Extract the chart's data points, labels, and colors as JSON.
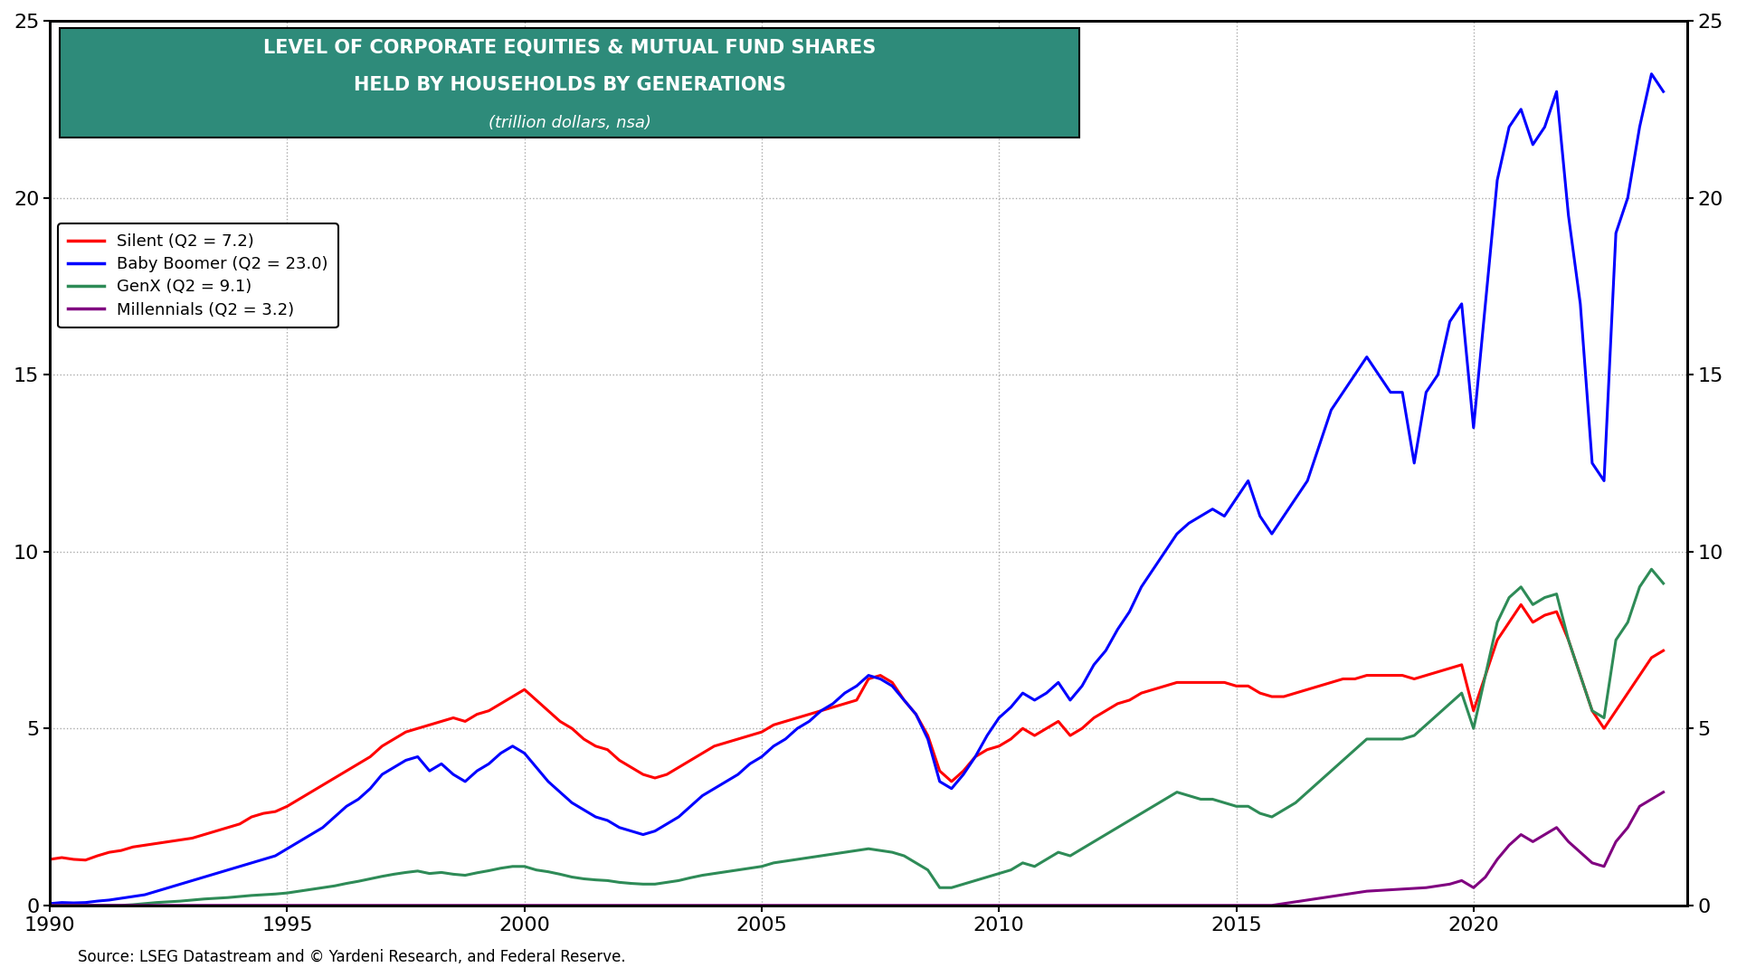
{
  "title_line1": "LEVEL OF CORPORATE EQUITIES & MUTUAL FUND SHARES",
  "title_line2": "HELD BY HOUSEHOLDS BY GENERATIONS",
  "title_line3": "(trillion dollars, nsa)",
  "title_bg_color": "#2e8b7a",
  "source_text": "Source: LSEG Datastream and © Yardeni Research, and Federal Reserve.",
  "legend_entries": [
    "Silent (Q2 = 7.2)",
    "Baby Boomer (Q2 = 23.0)",
    "GenX (Q2 = 9.1)",
    "Millennials (Q2 = 3.2)"
  ],
  "line_colors": [
    "#ff0000",
    "#0000ff",
    "#2e8b57",
    "#800080"
  ],
  "ylim": [
    0,
    25
  ],
  "yticks": [
    0,
    5,
    10,
    15,
    20,
    25
  ],
  "xlim_start": 1990,
  "xlim_end": 2024.5,
  "background_color": "#ffffff",
  "grid_color": "#aaaaaa",
  "years": [
    1990.0,
    1990.25,
    1990.5,
    1990.75,
    1991.0,
    1991.25,
    1991.5,
    1991.75,
    1992.0,
    1992.25,
    1992.5,
    1992.75,
    1993.0,
    1993.25,
    1993.5,
    1993.75,
    1994.0,
    1994.25,
    1994.5,
    1994.75,
    1995.0,
    1995.25,
    1995.5,
    1995.75,
    1996.0,
    1996.25,
    1996.5,
    1996.75,
    1997.0,
    1997.25,
    1997.5,
    1997.75,
    1998.0,
    1998.25,
    1998.5,
    1998.75,
    1999.0,
    1999.25,
    1999.5,
    1999.75,
    2000.0,
    2000.25,
    2000.5,
    2000.75,
    2001.0,
    2001.25,
    2001.5,
    2001.75,
    2002.0,
    2002.25,
    2002.5,
    2002.75,
    2003.0,
    2003.25,
    2003.5,
    2003.75,
    2004.0,
    2004.25,
    2004.5,
    2004.75,
    2005.0,
    2005.25,
    2005.5,
    2005.75,
    2006.0,
    2006.25,
    2006.5,
    2006.75,
    2007.0,
    2007.25,
    2007.5,
    2007.75,
    2008.0,
    2008.25,
    2008.5,
    2008.75,
    2009.0,
    2009.25,
    2009.5,
    2009.75,
    2010.0,
    2010.25,
    2010.5,
    2010.75,
    2011.0,
    2011.25,
    2011.5,
    2011.75,
    2012.0,
    2012.25,
    2012.5,
    2012.75,
    2013.0,
    2013.25,
    2013.5,
    2013.75,
    2014.0,
    2014.25,
    2014.5,
    2014.75,
    2015.0,
    2015.25,
    2015.5,
    2015.75,
    2016.0,
    2016.25,
    2016.5,
    2016.75,
    2017.0,
    2017.25,
    2017.5,
    2017.75,
    2018.0,
    2018.25,
    2018.5,
    2018.75,
    2019.0,
    2019.25,
    2019.5,
    2019.75,
    2020.0,
    2020.25,
    2020.5,
    2020.75,
    2021.0,
    2021.25,
    2021.5,
    2021.75,
    2022.0,
    2022.25,
    2022.5,
    2022.75,
    2023.0,
    2023.25,
    2023.5,
    2023.75,
    2024.0
  ],
  "silent": [
    1.3,
    1.35,
    1.3,
    1.28,
    1.4,
    1.5,
    1.55,
    1.65,
    1.7,
    1.75,
    1.8,
    1.85,
    1.9,
    2.0,
    2.1,
    2.2,
    2.3,
    2.5,
    2.6,
    2.65,
    2.8,
    3.0,
    3.2,
    3.4,
    3.6,
    3.8,
    4.0,
    4.2,
    4.5,
    4.7,
    4.9,
    5.0,
    5.1,
    5.2,
    5.3,
    5.2,
    5.4,
    5.5,
    5.7,
    5.9,
    6.1,
    5.8,
    5.5,
    5.2,
    5.0,
    4.7,
    4.5,
    4.4,
    4.1,
    3.9,
    3.7,
    3.6,
    3.7,
    3.9,
    4.1,
    4.3,
    4.5,
    4.6,
    4.7,
    4.8,
    4.9,
    5.1,
    5.2,
    5.3,
    5.4,
    5.5,
    5.6,
    5.7,
    5.8,
    6.4,
    6.5,
    6.3,
    5.8,
    5.4,
    4.8,
    3.8,
    3.5,
    3.8,
    4.2,
    4.4,
    4.5,
    4.7,
    5.0,
    4.8,
    5.0,
    5.2,
    4.8,
    5.0,
    5.3,
    5.5,
    5.7,
    5.8,
    6.0,
    6.1,
    6.2,
    6.3,
    6.3,
    6.3,
    6.3,
    6.3,
    6.2,
    6.2,
    6.0,
    5.9,
    5.9,
    6.0,
    6.1,
    6.2,
    6.3,
    6.4,
    6.4,
    6.5,
    6.5,
    6.5,
    6.5,
    6.4,
    6.5,
    6.6,
    6.7,
    6.8,
    5.5,
    6.5,
    7.5,
    8.0,
    8.5,
    8.0,
    8.2,
    8.3,
    7.5,
    6.5,
    5.5,
    5.0,
    5.5,
    6.0,
    6.5,
    7.0,
    7.2
  ],
  "baby_boomer": [
    0.05,
    0.08,
    0.07,
    0.08,
    0.12,
    0.15,
    0.2,
    0.25,
    0.3,
    0.4,
    0.5,
    0.6,
    0.7,
    0.8,
    0.9,
    1.0,
    1.1,
    1.2,
    1.3,
    1.4,
    1.6,
    1.8,
    2.0,
    2.2,
    2.5,
    2.8,
    3.0,
    3.3,
    3.7,
    3.9,
    4.1,
    4.2,
    3.8,
    4.0,
    3.7,
    3.5,
    3.8,
    4.0,
    4.3,
    4.5,
    4.3,
    3.9,
    3.5,
    3.2,
    2.9,
    2.7,
    2.5,
    2.4,
    2.2,
    2.1,
    2.0,
    2.1,
    2.3,
    2.5,
    2.8,
    3.1,
    3.3,
    3.5,
    3.7,
    4.0,
    4.2,
    4.5,
    4.7,
    5.0,
    5.2,
    5.5,
    5.7,
    6.0,
    6.2,
    6.5,
    6.4,
    6.2,
    5.8,
    5.4,
    4.7,
    3.5,
    3.3,
    3.7,
    4.2,
    4.8,
    5.3,
    5.6,
    6.0,
    5.8,
    6.0,
    6.3,
    5.8,
    6.2,
    6.8,
    7.2,
    7.8,
    8.3,
    9.0,
    9.5,
    10.0,
    10.5,
    10.8,
    11.0,
    11.2,
    11.0,
    11.5,
    12.0,
    11.0,
    10.5,
    11.0,
    11.5,
    12.0,
    13.0,
    14.0,
    14.5,
    15.0,
    15.5,
    15.0,
    14.5,
    14.5,
    12.5,
    14.5,
    15.0,
    16.5,
    17.0,
    13.5,
    17.0,
    20.5,
    22.0,
    22.5,
    21.5,
    22.0,
    23.0,
    19.5,
    17.0,
    12.5,
    12.0,
    19.0,
    20.0,
    22.0,
    23.5,
    23.0
  ],
  "genx": [
    0.0,
    0.0,
    0.0,
    0.0,
    0.0,
    0.0,
    0.0,
    0.02,
    0.05,
    0.08,
    0.1,
    0.12,
    0.15,
    0.18,
    0.2,
    0.22,
    0.25,
    0.28,
    0.3,
    0.32,
    0.35,
    0.4,
    0.45,
    0.5,
    0.55,
    0.62,
    0.68,
    0.75,
    0.82,
    0.88,
    0.93,
    0.97,
    0.9,
    0.93,
    0.88,
    0.85,
    0.92,
    0.98,
    1.05,
    1.1,
    1.1,
    1.0,
    0.95,
    0.88,
    0.8,
    0.75,
    0.72,
    0.7,
    0.65,
    0.62,
    0.6,
    0.6,
    0.65,
    0.7,
    0.78,
    0.85,
    0.9,
    0.95,
    1.0,
    1.05,
    1.1,
    1.2,
    1.25,
    1.3,
    1.35,
    1.4,
    1.45,
    1.5,
    1.55,
    1.6,
    1.55,
    1.5,
    1.4,
    1.2,
    1.0,
    0.5,
    0.5,
    0.6,
    0.7,
    0.8,
    0.9,
    1.0,
    1.2,
    1.1,
    1.3,
    1.5,
    1.4,
    1.6,
    1.8,
    2.0,
    2.2,
    2.4,
    2.6,
    2.8,
    3.0,
    3.2,
    3.1,
    3.0,
    3.0,
    2.9,
    2.8,
    2.8,
    2.6,
    2.5,
    2.7,
    2.9,
    3.2,
    3.5,
    3.8,
    4.1,
    4.4,
    4.7,
    4.7,
    4.7,
    4.7,
    4.8,
    5.1,
    5.4,
    5.7,
    6.0,
    5.0,
    6.5,
    8.0,
    8.7,
    9.0,
    8.5,
    8.7,
    8.8,
    7.5,
    6.5,
    5.5,
    5.3,
    7.5,
    8.0,
    9.0,
    9.5,
    9.1
  ],
  "millennials": [
    0.0,
    0.0,
    0.0,
    0.0,
    0.0,
    0.0,
    0.0,
    0.0,
    0.0,
    0.0,
    0.0,
    0.0,
    0.0,
    0.0,
    0.0,
    0.0,
    0.0,
    0.0,
    0.0,
    0.0,
    0.0,
    0.0,
    0.0,
    0.0,
    0.0,
    0.0,
    0.0,
    0.0,
    0.0,
    0.0,
    0.0,
    0.0,
    0.0,
    0.0,
    0.0,
    0.0,
    0.0,
    0.0,
    0.0,
    0.0,
    0.0,
    0.0,
    0.0,
    0.0,
    0.0,
    0.0,
    0.0,
    0.0,
    0.0,
    0.0,
    0.0,
    0.0,
    0.0,
    0.0,
    0.0,
    0.0,
    0.0,
    0.0,
    0.0,
    0.0,
    0.0,
    0.0,
    0.0,
    0.0,
    0.0,
    0.0,
    0.0,
    0.0,
    0.0,
    0.0,
    0.0,
    0.0,
    0.0,
    0.0,
    0.0,
    0.0,
    0.0,
    0.0,
    0.0,
    0.0,
    0.0,
    0.0,
    0.0,
    0.0,
    0.0,
    0.0,
    0.0,
    0.0,
    0.0,
    0.0,
    0.0,
    0.0,
    0.0,
    0.0,
    0.0,
    0.0,
    0.0,
    0.0,
    0.0,
    0.0,
    0.0,
    0.0,
    0.0,
    0.0,
    0.05,
    0.1,
    0.15,
    0.2,
    0.25,
    0.3,
    0.35,
    0.4,
    0.42,
    0.44,
    0.46,
    0.48,
    0.5,
    0.55,
    0.6,
    0.7,
    0.5,
    0.8,
    1.3,
    1.7,
    2.0,
    1.8,
    2.0,
    2.2,
    1.8,
    1.5,
    1.2,
    1.1,
    1.8,
    2.2,
    2.8,
    3.0,
    3.2
  ]
}
